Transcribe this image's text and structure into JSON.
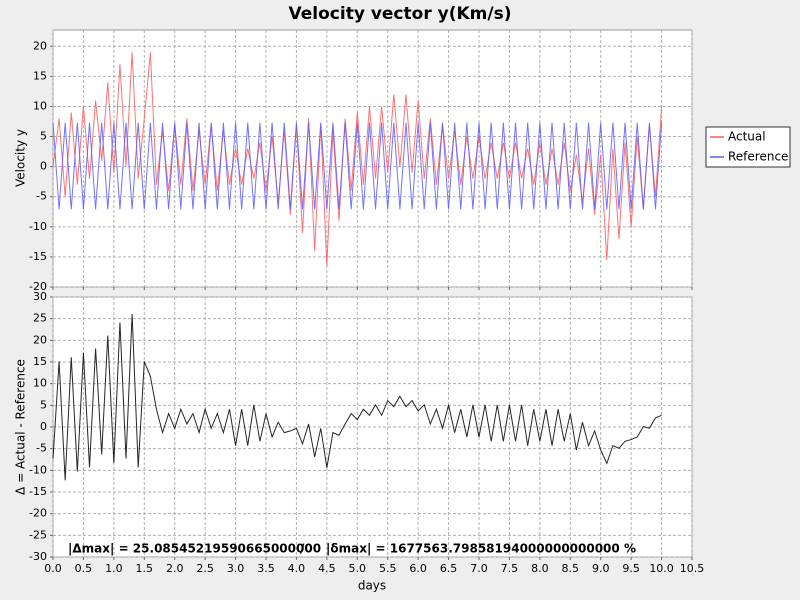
{
  "chart_data": [
    {
      "type": "line",
      "title": "Velocity vector y(Km/s)",
      "ylabel": "Velocity y",
      "legend": "right",
      "grid": true,
      "ylim": [
        -20,
        22.7
      ],
      "yticks": [
        -20,
        -15,
        -10,
        -5,
        0,
        5,
        10,
        15,
        20
      ],
      "x": [
        0,
        0.1,
        0.2,
        0.3,
        0.4,
        0.5,
        0.6,
        0.7,
        0.8,
        0.9,
        1,
        1.1,
        1.2,
        1.3,
        1.4,
        1.5,
        1.6,
        1.7,
        1.8,
        1.9,
        2,
        2.1,
        2.2,
        2.3,
        2.4,
        2.5,
        2.6,
        2.7,
        2.8,
        2.9,
        3,
        3.1,
        3.2,
        3.3,
        3.4,
        3.5,
        3.6,
        3.7,
        3.8,
        3.9,
        4,
        4.1,
        4.2,
        4.3,
        4.4,
        4.5,
        4.6,
        4.7,
        4.8,
        4.9,
        5,
        5.1,
        5.2,
        5.3,
        5.4,
        5.5,
        5.6,
        5.7,
        5.8,
        5.9,
        6,
        6.1,
        6.2,
        6.3,
        6.4,
        6.5,
        6.6,
        6.7,
        6.8,
        6.9,
        7,
        7.1,
        7.2,
        7.3,
        7.4,
        7.5,
        7.6,
        7.7,
        7.8,
        7.9,
        8,
        8.1,
        8.2,
        8.3,
        8.4,
        8.5,
        8.6,
        8.7,
        8.8,
        8.9,
        9,
        9.1,
        9.2,
        9.3,
        9.4,
        9.5,
        9.6,
        9.7,
        9.8,
        9.9,
        10
      ],
      "series": [
        {
          "name": "Actual",
          "color": "#ff5a5a",
          "values": [
            0,
            8,
            -5,
            9,
            -3,
            10,
            -2,
            11,
            1,
            14,
            -1,
            17,
            0,
            19,
            -2,
            8,
            19,
            -3,
            6,
            -4,
            7,
            -3,
            8,
            -4,
            6,
            -3,
            7,
            -4,
            6,
            -3,
            3,
            -3,
            3,
            -2,
            4,
            -4,
            5,
            -6,
            6,
            -8,
            7,
            -11,
            8,
            -14,
            7,
            -16.5,
            6,
            -9,
            8,
            -4,
            9,
            -3,
            10,
            -2,
            10,
            -1,
            12,
            0,
            12,
            -1,
            11,
            -2,
            8,
            -3,
            7,
            -2,
            6,
            -3,
            5,
            -2,
            5,
            -2,
            4,
            -2,
            4,
            -2,
            4,
            -2,
            3,
            -3,
            4,
            -3,
            3,
            -3,
            4,
            -4,
            2,
            -6,
            3,
            -8,
            2,
            -15.5,
            3,
            -12,
            4,
            -10,
            5,
            -7,
            7,
            -5,
            10
          ]
        },
        {
          "name": "Reference",
          "color": "#5a5aff",
          "values": [
            7.3,
            -7.1,
            7.3,
            -7.1,
            7.3,
            -7.1,
            7.3,
            -7.1,
            7.3,
            -7.1,
            7.3,
            -7.1,
            7.3,
            -7.1,
            7.3,
            -7.1,
            7.3,
            -7.1,
            7.3,
            -7.1,
            7.3,
            -7.1,
            7.3,
            -7.1,
            7.3,
            -7.1,
            7.3,
            -7.1,
            7.3,
            -7.1,
            7.3,
            -7.1,
            7.3,
            -7.1,
            7.3,
            -7.1,
            7.3,
            -7.1,
            7.3,
            -7.1,
            7.3,
            -7.1,
            7.3,
            -7.1,
            7.3,
            -7.1,
            7.3,
            -7.1,
            7.3,
            -7.1,
            7.3,
            -7.1,
            7.3,
            -7.1,
            7.3,
            -7.1,
            7.3,
            -7.1,
            7.3,
            -7.1,
            7.3,
            -7.1,
            7.3,
            -7.1,
            7.3,
            -7.1,
            7.3,
            -7.1,
            7.3,
            -7.1,
            7.3,
            -7.1,
            7.3,
            -7.1,
            7.3,
            -7.1,
            7.3,
            -7.1,
            7.3,
            -7.1,
            7.3,
            -7.1,
            7.3,
            -7.1,
            7.3,
            -7.1,
            7.3,
            -7.1,
            7.3,
            -7.1,
            7.3,
            -7.1,
            7.3,
            -7.1,
            7.3,
            -7.1,
            7.3,
            -7.1,
            7.3,
            -7.1,
            7.3
          ]
        }
      ]
    },
    {
      "type": "line",
      "xlabel": "days",
      "ylabel": "Δ = Actual - Reference",
      "grid": true,
      "color": "#000000",
      "xlim": [
        0,
        10.5
      ],
      "xticks": [
        {
          "value": 0,
          "label": "0.0"
        },
        0.5,
        {
          "value": 1,
          "label": "1.0"
        },
        1.5,
        {
          "value": 2,
          "label": "2.0"
        },
        2.5,
        {
          "value": 3,
          "label": "3.0"
        },
        3.5,
        {
          "value": 4,
          "label": "4.0"
        },
        4.5,
        {
          "value": 5,
          "label": "5.0"
        },
        5.5,
        {
          "value": 6,
          "label": "6.0"
        },
        6.5,
        {
          "value": 7,
          "label": "7.0"
        },
        7.5,
        {
          "value": 8,
          "label": "8.0"
        },
        8.5,
        {
          "value": 9,
          "label": "9.0"
        },
        9.5,
        {
          "value": 10,
          "label": "10.0"
        },
        10.5
      ],
      "ylim": [
        -30,
        30
      ],
      "yticks": [
        -30,
        -25,
        -20,
        -15,
        -10,
        -5,
        0,
        5,
        10,
        15,
        20,
        25,
        30
      ],
      "annotations": [
        "|Δmax| = 25.08545219590665000000",
        "/",
        "|δmax| = 1677563.79858194000000000000 %"
      ],
      "x": [
        0,
        0.1,
        0.2,
        0.3,
        0.4,
        0.5,
        0.6,
        0.7,
        0.8,
        0.9,
        1,
        1.1,
        1.2,
        1.3,
        1.4,
        1.5,
        1.6,
        1.7,
        1.8,
        1.9,
        2,
        2.1,
        2.2,
        2.3,
        2.4,
        2.5,
        2.6,
        2.7,
        2.8,
        2.9,
        3,
        3.1,
        3.2,
        3.3,
        3.4,
        3.5,
        3.6,
        3.7,
        3.8,
        3.9,
        4,
        4.1,
        4.2,
        4.3,
        4.4,
        4.5,
        4.6,
        4.7,
        4.8,
        4.9,
        5,
        5.1,
        5.2,
        5.3,
        5.4,
        5.5,
        5.6,
        5.7,
        5.8,
        5.9,
        6,
        6.1,
        6.2,
        6.3,
        6.4,
        6.5,
        6.6,
        6.7,
        6.8,
        6.9,
        7,
        7.1,
        7.2,
        7.3,
        7.4,
        7.5,
        7.6,
        7.7,
        7.8,
        7.9,
        8,
        8.1,
        8.2,
        8.3,
        8.4,
        8.5,
        8.6,
        8.7,
        8.8,
        8.9,
        9,
        9.1,
        9.2,
        9.3,
        9.4,
        9.5,
        9.6,
        9.7,
        9.8,
        9.9,
        10
      ],
      "values": [
        -7.3,
        15.1,
        -12.3,
        16.1,
        -10.3,
        17.1,
        -9.3,
        18.1,
        -6.3,
        21.1,
        -8.3,
        24.1,
        -7.3,
        26.1,
        -9.3,
        15.1,
        11.7,
        4.1,
        -1.3,
        3.1,
        -0.3,
        4.1,
        0.7,
        3.1,
        -1.3,
        4.1,
        -0.3,
        3.1,
        -1.3,
        4.1,
        -4.3,
        4.1,
        -4.3,
        5.1,
        -3.3,
        3.1,
        -2.3,
        1.1,
        -1.3,
        -0.9,
        -0.3,
        -3.9,
        0.7,
        -6.9,
        -0.3,
        -9.4,
        -1.3,
        -1.9,
        0.7,
        3.1,
        1.7,
        4.1,
        2.7,
        5.1,
        2.7,
        6.1,
        4.7,
        7.1,
        4.7,
        6.1,
        3.7,
        5.1,
        0.7,
        4.1,
        -0.3,
        5.1,
        -1.3,
        4.1,
        -2.3,
        5.1,
        -2.3,
        5.1,
        -3.3,
        5.1,
        -3.3,
        5.1,
        -3.3,
        5.1,
        -4.3,
        4.1,
        -3.3,
        4.1,
        -4.3,
        4.1,
        -3.3,
        3.1,
        -5.3,
        1.1,
        -4.3,
        -0.9,
        -5.3,
        -8.4,
        -4.3,
        -4.9,
        -3.3,
        -2.9,
        -2.3,
        0.1,
        -0.3,
        2.1,
        2.7
      ]
    }
  ]
}
